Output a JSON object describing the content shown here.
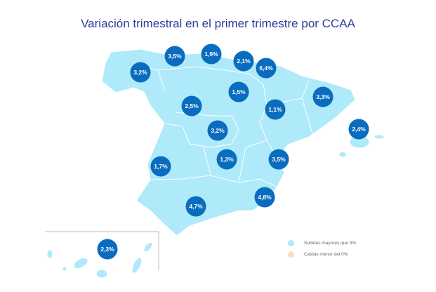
{
  "title": "Variación trimestral en el primer trimestre por CCAA",
  "colors": {
    "map_fill": "#aeeaf9",
    "bubble": "#0a6cbf",
    "negative": "#f8dccb",
    "border": "#ffffff"
  },
  "regions": [
    {
      "value": "3,2%"
    },
    {
      "value": "3,5%"
    },
    {
      "value": "1,9%"
    },
    {
      "value": "2,1%"
    },
    {
      "value": "6,4%"
    },
    {
      "value": "1,5%"
    },
    {
      "value": "3,3%"
    },
    {
      "value": "2,5%"
    },
    {
      "value": "1,1%"
    },
    {
      "value": "3,2%"
    },
    {
      "value": "2,4%"
    },
    {
      "value": "1,7%"
    },
    {
      "value": "1,3%"
    },
    {
      "value": "3,5%"
    },
    {
      "value": "4,8%"
    },
    {
      "value": "4,7%"
    },
    {
      "value": "2,3%"
    }
  ],
  "legend": {
    "positive": "Subidas mayores que 0%",
    "negative": "Caídas menor del 0%"
  }
}
